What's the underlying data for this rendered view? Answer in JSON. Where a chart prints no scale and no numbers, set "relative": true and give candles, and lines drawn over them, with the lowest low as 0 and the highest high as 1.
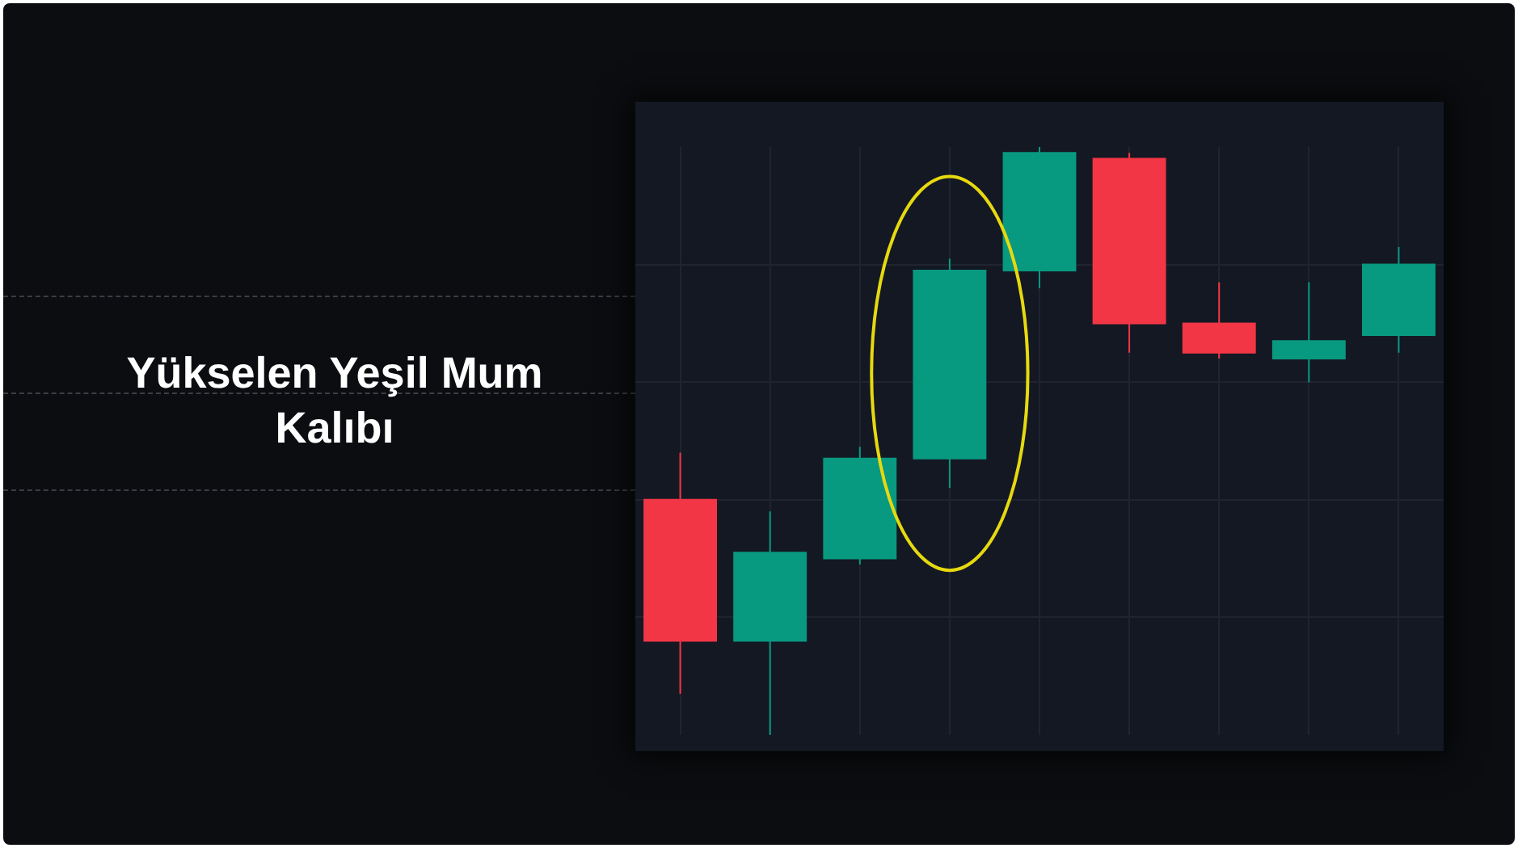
{
  "chart_data": {
    "type": "candlestick",
    "title": "Yükselen Yeşil Mum Kalıbı",
    "relative": true,
    "grid": true,
    "categories": [
      null,
      null,
      null,
      null,
      null,
      null,
      null,
      null,
      null
    ],
    "ohlc": [
      [
        0.4,
        0.48,
        0.07,
        0.16
      ],
      [
        0.16,
        0.38,
        0,
        0.31
      ],
      [
        0.3,
        0.49,
        0.29,
        0.47
      ],
      [
        0.47,
        0.81,
        0.42,
        0.79
      ],
      [
        0.79,
        1,
        0.76,
        0.99
      ],
      [
        0.98,
        0.99,
        0.65,
        0.7
      ],
      [
        0.7,
        0.77,
        0.64,
        0.65
      ],
      [
        0.64,
        0.77,
        0.6,
        0.67
      ],
      [
        0.68,
        0.83,
        0.65,
        0.8
      ]
    ],
    "colors": [
      "#f23645",
      "#089981",
      "#089981",
      "#089981",
      "#089981",
      "#f23645",
      "#f23645",
      "#089981",
      "#089981"
    ]
  }
}
